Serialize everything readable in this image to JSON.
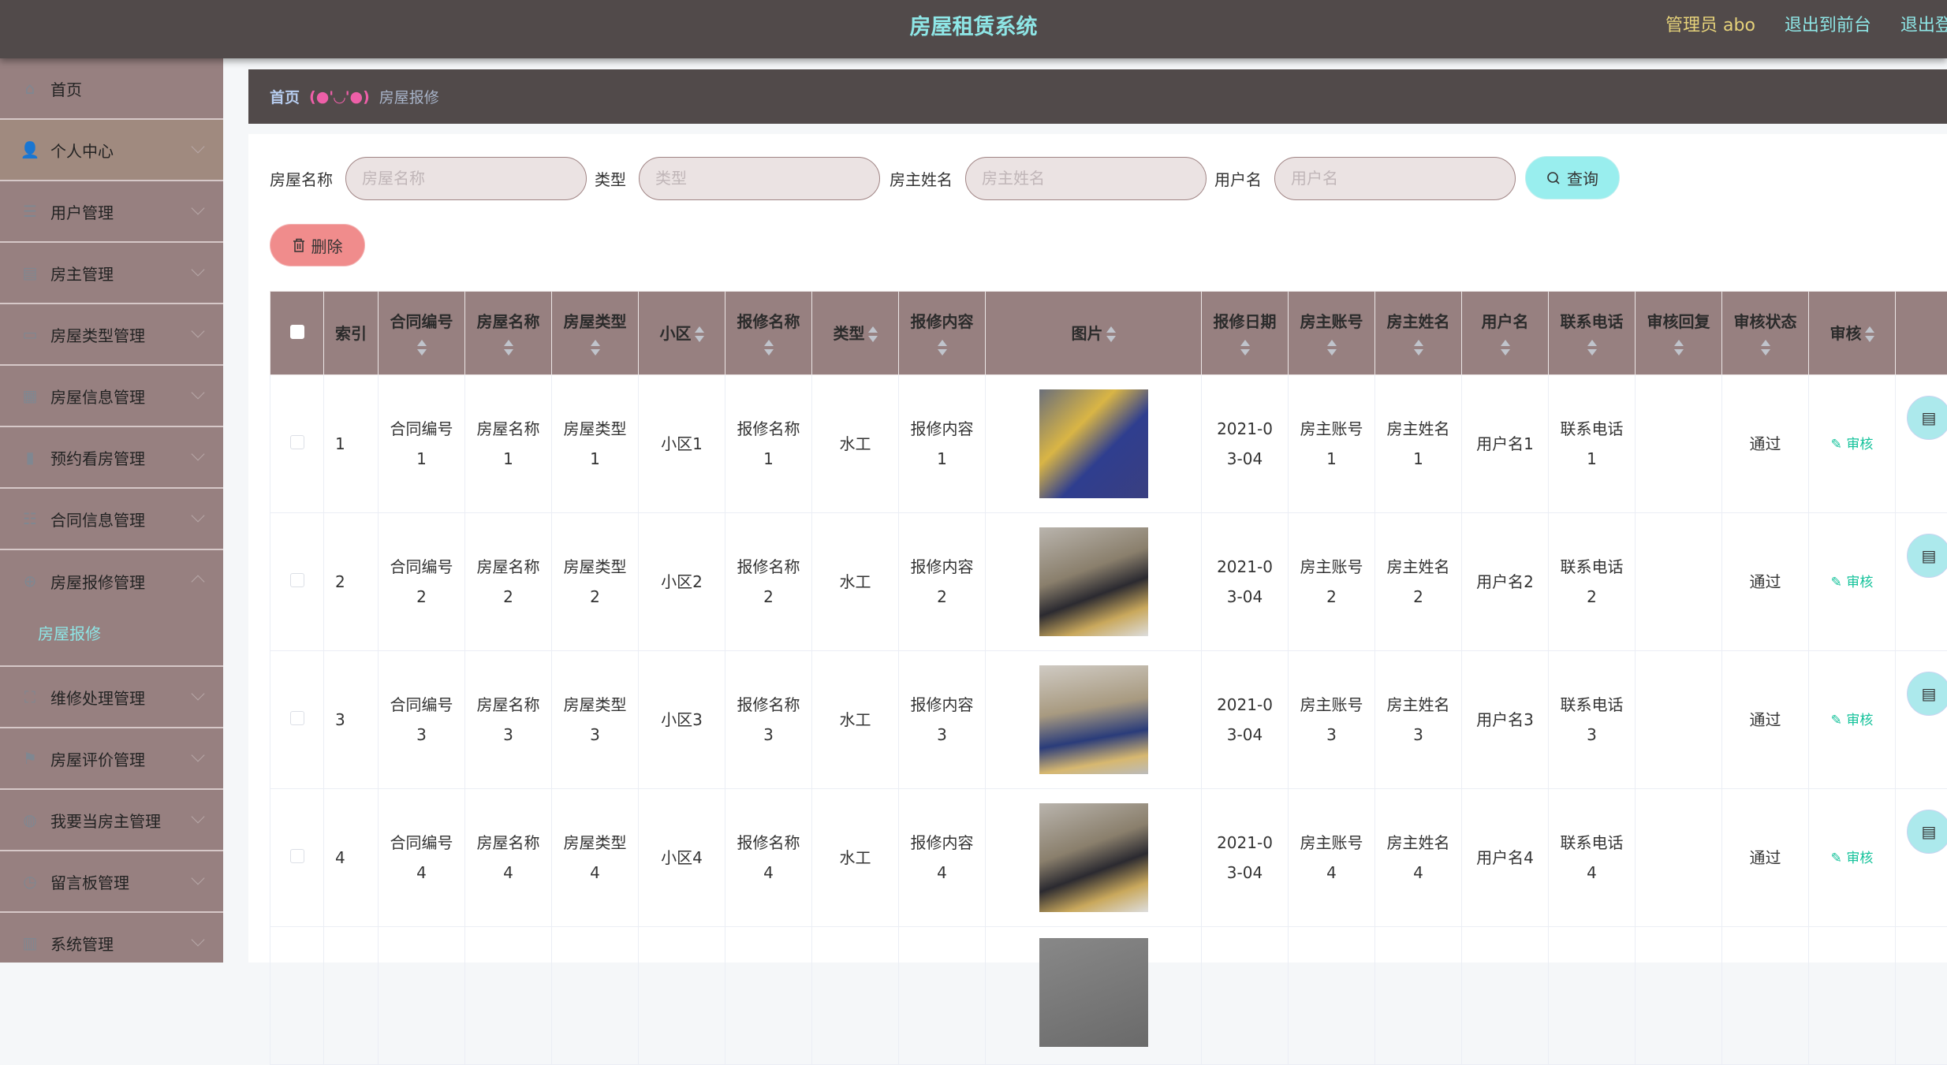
{
  "header": {
    "title": "房屋租赁系统",
    "admin": "管理员 abo",
    "to_front": "退出到前台",
    "logout": "退出登录"
  },
  "colors": {
    "header_bg": "#514a4a",
    "sidebar_bg": "#978080",
    "accent_cyan": "#99eeee",
    "delete_pink": "#f08c8c",
    "audit_green": "#13c29a"
  },
  "sidebar": {
    "items": [
      {
        "label": "首页",
        "icon": "home-icon"
      },
      {
        "label": "个人中心",
        "icon": "user-icon"
      },
      {
        "label": "用户管理",
        "icon": "list-icon"
      },
      {
        "label": "房主管理",
        "icon": "document-icon"
      },
      {
        "label": "房屋类型管理",
        "icon": "monitor-icon"
      },
      {
        "label": "房屋信息管理",
        "icon": "grid-icon"
      },
      {
        "label": "预约看房管理",
        "icon": "bar-chart-icon"
      },
      {
        "label": "合同信息管理",
        "icon": "sliders-icon"
      },
      {
        "label": "房屋报修管理",
        "icon": "target-icon",
        "submenu": [
          "房屋报修"
        ]
      },
      {
        "label": "维修处理管理",
        "icon": "fullscreen-icon"
      },
      {
        "label": "房屋评价管理",
        "icon": "flag-icon"
      },
      {
        "label": "我要当房主管理",
        "icon": "microphone-icon"
      },
      {
        "label": "留言板管理",
        "icon": "clock-icon"
      },
      {
        "label": "系统管理",
        "icon": "server-icon"
      }
    ]
  },
  "breadcrumb": {
    "home": "首页",
    "separator": "(●'◡'●)",
    "current": "房屋报修"
  },
  "search": {
    "fields": [
      {
        "label": "房屋名称",
        "placeholder": "房屋名称",
        "value": ""
      },
      {
        "label": "类型",
        "placeholder": "类型",
        "value": ""
      },
      {
        "label": "房主姓名",
        "placeholder": "房主姓名",
        "value": ""
      },
      {
        "label": "用户名",
        "placeholder": "用户名",
        "value": ""
      }
    ],
    "query_label": "查询"
  },
  "toolbar": {
    "delete_label": "删除"
  },
  "table": {
    "columns": [
      "",
      "索引",
      "合同编号",
      "房屋名称",
      "房屋类型",
      "小区",
      "报修名称",
      "类型",
      "报修内容",
      "图片",
      "报修日期",
      "房主账号",
      "房主姓名",
      "用户名",
      "联系电话",
      "审核回复",
      "审核状态",
      "审核",
      ""
    ],
    "audit_label": "审核",
    "rows": [
      {
        "index": "1",
        "contract": "合同编号1",
        "house": "房屋名称1",
        "house_type": "房屋类型1",
        "community": "小区1",
        "repair_name": "报修名称1",
        "type": "水工",
        "content": "报修内容1",
        "date": "2021-03-04",
        "owner_account": "房主账号1",
        "owner_name": "房主姓名1",
        "username": "用户名1",
        "phone": "联系电话1",
        "reply": "",
        "status": "通过"
      },
      {
        "index": "2",
        "contract": "合同编号2",
        "house": "房屋名称2",
        "house_type": "房屋类型2",
        "community": "小区2",
        "repair_name": "报修名称2",
        "type": "水工",
        "content": "报修内容2",
        "date": "2021-03-04",
        "owner_account": "房主账号2",
        "owner_name": "房主姓名2",
        "username": "用户名2",
        "phone": "联系电话2",
        "reply": "",
        "status": "通过"
      },
      {
        "index": "3",
        "contract": "合同编号3",
        "house": "房屋名称3",
        "house_type": "房屋类型3",
        "community": "小区3",
        "repair_name": "报修名称3",
        "type": "水工",
        "content": "报修内容3",
        "date": "2021-03-04",
        "owner_account": "房主账号3",
        "owner_name": "房主姓名3",
        "username": "用户名3",
        "phone": "联系电话3",
        "reply": "",
        "status": "通过"
      },
      {
        "index": "4",
        "contract": "合同编号4",
        "house": "房屋名称4",
        "house_type": "房屋类型4",
        "community": "小区4",
        "repair_name": "报修名称4",
        "type": "水工",
        "content": "报修内容4",
        "date": "2021-03-04",
        "owner_account": "房主账号4",
        "owner_name": "房主姓名4",
        "username": "用户名4",
        "phone": "联系电话4",
        "reply": "",
        "status": "通过"
      }
    ]
  }
}
